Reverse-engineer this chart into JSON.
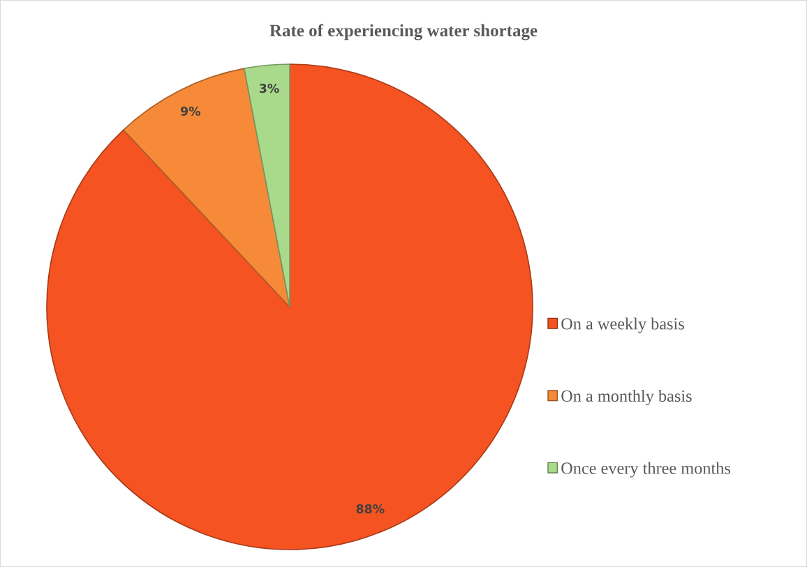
{
  "chart_data": {
    "type": "pie",
    "title": "Rate of experiencing water shortage",
    "categories": [
      "On a weekly basis",
      "On a monthly basis",
      "Once every three months"
    ],
    "values": [
      88,
      9,
      3
    ],
    "colors": [
      "#f55322",
      "#f68a38",
      "#a9d98a"
    ],
    "value_labels": [
      "88%",
      "9%",
      "3%"
    ],
    "legend": "right"
  }
}
